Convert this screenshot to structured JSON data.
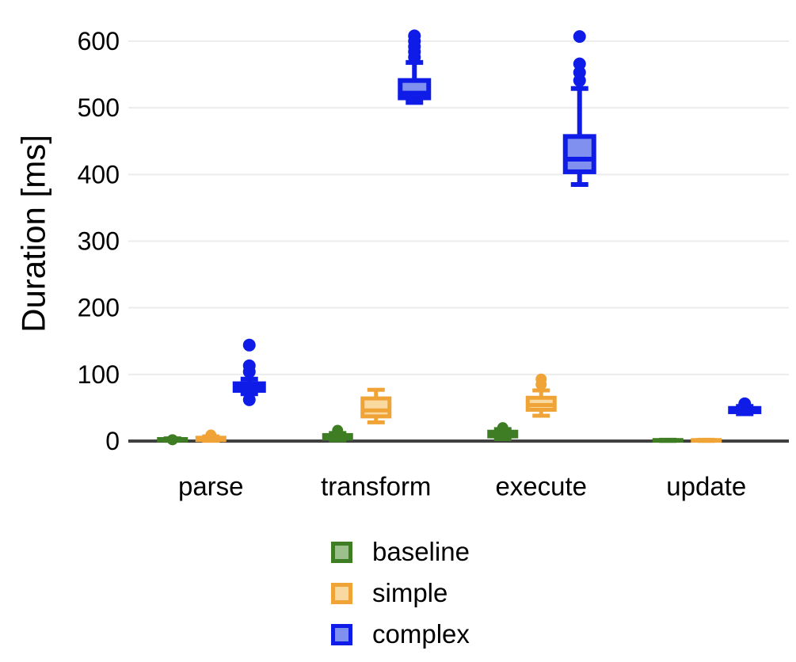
{
  "chart_data": {
    "type": "boxplot",
    "title": "",
    "xlabel": "",
    "ylabel": "Duration [ms]",
    "categories": [
      "parse",
      "transform",
      "execute",
      "update"
    ],
    "y_ticks": [
      0,
      100,
      200,
      300,
      400,
      500,
      600
    ],
    "ylim": [
      0,
      620
    ],
    "grid": "horizontal-only",
    "legend_position": "bottom-center",
    "style": {
      "background": "#ffffff",
      "axis_color": "#404040",
      "grid_color": "#ececec",
      "text_color": "#000000"
    },
    "series": [
      {
        "name": "baseline",
        "color": "#3e7d23",
        "fill": "#9cc08b",
        "boxes": [
          {
            "category": "parse",
            "whislo": 0.5,
            "q1": 1,
            "med": 2,
            "q3": 3,
            "whishi": 4,
            "outliers": [
              2
            ]
          },
          {
            "category": "transform",
            "whislo": 1,
            "q1": 4,
            "med": 6,
            "q3": 9,
            "whishi": 12,
            "outliers": [
              16
            ]
          },
          {
            "category": "execute",
            "whislo": 3,
            "q1": 7,
            "med": 10,
            "q3": 14,
            "whishi": 18,
            "outliers": [
              20
            ]
          },
          {
            "category": "update",
            "whislo": 0.3,
            "q1": 0.6,
            "med": 1,
            "q3": 1.5,
            "whishi": 2,
            "outliers": []
          }
        ]
      },
      {
        "name": "simple",
        "color": "#f0a437",
        "fill": "#f9d9a0",
        "boxes": [
          {
            "category": "parse",
            "whislo": 0.5,
            "q1": 1.5,
            "med": 3,
            "q3": 5,
            "whishi": 7,
            "outliers": [
              9
            ]
          },
          {
            "category": "transform",
            "whislo": 28,
            "q1": 37,
            "med": 46,
            "q3": 64,
            "whishi": 77,
            "outliers": []
          },
          {
            "category": "execute",
            "whislo": 38,
            "q1": 47,
            "med": 54,
            "q3": 65,
            "whishi": 76,
            "outliers": [
              85,
              93
            ]
          },
          {
            "category": "update",
            "whislo": 0.3,
            "q1": 0.6,
            "med": 1,
            "q3": 1.5,
            "whishi": 2,
            "outliers": []
          }
        ]
      },
      {
        "name": "complex",
        "color": "#0f1ce8",
        "fill": "#8090ee",
        "boxes": [
          {
            "category": "parse",
            "whislo": 71,
            "q1": 76,
            "med": 81,
            "q3": 86,
            "whishi": 93,
            "outliers": [
              62,
              104,
              113,
              144
            ]
          },
          {
            "category": "transform",
            "whislo": 508,
            "q1": 515,
            "med": 522,
            "q3": 541,
            "whishi": 568,
            "outliers": [
              576,
              584,
              592,
              600,
              608
            ]
          },
          {
            "category": "execute",
            "whislo": 385,
            "q1": 404,
            "med": 423,
            "q3": 457,
            "whishi": 529,
            "outliers": [
              541,
              553,
              566,
              607
            ]
          },
          {
            "category": "update",
            "whislo": 41,
            "q1": 44,
            "med": 46,
            "q3": 49,
            "whishi": 52,
            "outliers": [
              56
            ]
          }
        ]
      }
    ]
  }
}
